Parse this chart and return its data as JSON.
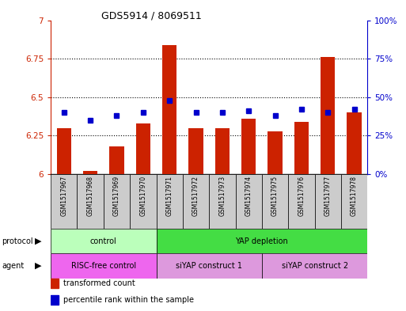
{
  "title": "GDS5914 / 8069511",
  "samples": [
    "GSM1517967",
    "GSM1517968",
    "GSM1517969",
    "GSM1517970",
    "GSM1517971",
    "GSM1517972",
    "GSM1517973",
    "GSM1517974",
    "GSM1517975",
    "GSM1517976",
    "GSM1517977",
    "GSM1517978"
  ],
  "transformed_count": [
    6.3,
    6.02,
    6.18,
    6.33,
    6.84,
    6.3,
    6.3,
    6.36,
    6.28,
    6.34,
    6.76,
    6.4
  ],
  "percentile_rank": [
    40,
    35,
    38,
    40,
    48,
    40,
    40,
    41,
    38,
    42,
    40,
    42
  ],
  "ylim_left": [
    6.0,
    7.0
  ],
  "ylim_right": [
    0,
    100
  ],
  "yticks_left": [
    6.0,
    6.25,
    6.5,
    6.75,
    7.0
  ],
  "yticks_right": [
    0,
    25,
    50,
    75,
    100
  ],
  "ytick_labels_left": [
    "6",
    "6.25",
    "6.5",
    "6.75",
    "7"
  ],
  "ytick_labels_right": [
    "0%",
    "25%",
    "50%",
    "75%",
    "100%"
  ],
  "bar_color": "#cc2200",
  "dot_color": "#0000cc",
  "protocol_groups": [
    {
      "label": "control",
      "start": 0,
      "end": 4,
      "color": "#bbffbb"
    },
    {
      "label": "YAP depletion",
      "start": 4,
      "end": 12,
      "color": "#44dd44"
    }
  ],
  "agent_groups": [
    {
      "label": "RISC-free control",
      "start": 0,
      "end": 4,
      "color": "#ee66ee"
    },
    {
      "label": "siYAP construct 1",
      "start": 4,
      "end": 8,
      "color": "#dd99dd"
    },
    {
      "label": "siYAP construct 2",
      "start": 8,
      "end": 12,
      "color": "#dd99dd"
    }
  ],
  "background_color": "#ffffff",
  "sample_bg": "#cccccc",
  "title_fontsize": 9,
  "axis_fontsize": 7.5,
  "label_fontsize": 7,
  "sample_fontsize": 5.5
}
